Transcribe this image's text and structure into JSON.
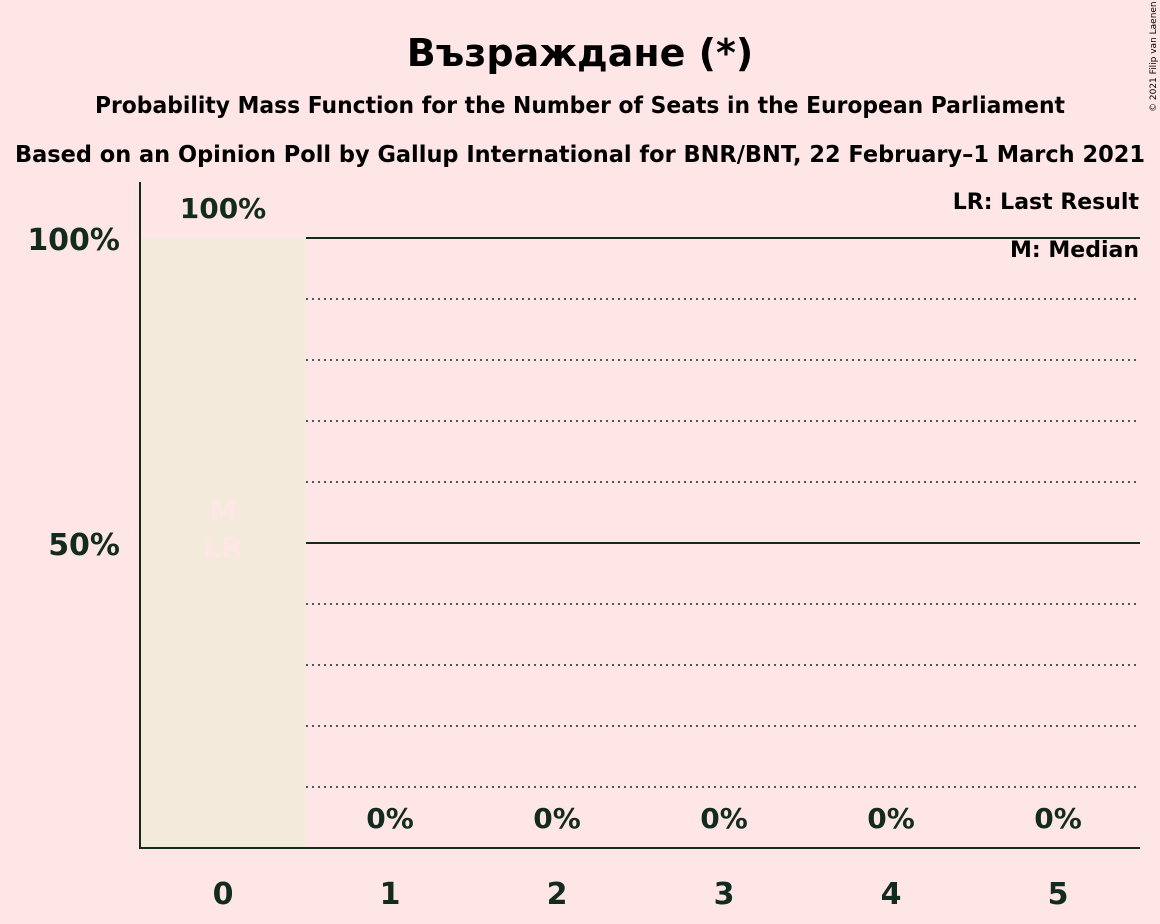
{
  "credit": "© 2021 Filip van Laenen",
  "chart_data": {
    "type": "bar",
    "title": "Възраждане (*)",
    "subtitle": "Probability Mass Function for the Number of Seats in the European Parliament",
    "subtitle2": "Based on an Opinion Poll by Gallup International for BNR/BNT, 22 February–1 March 2021",
    "categories": [
      "0",
      "1",
      "2",
      "3",
      "4",
      "5"
    ],
    "values": [
      100,
      0,
      0,
      0,
      0,
      0
    ],
    "value_labels": [
      "100%",
      "0%",
      "0%",
      "0%",
      "0%",
      "0%"
    ],
    "ylim": [
      0,
      100
    ],
    "yticks": [
      50,
      100
    ],
    "ytick_labels": [
      "50%",
      "100%"
    ],
    "grid": "dotted every 10%, solid at 50% and 100%",
    "median_label": "M",
    "last_result_label": "LR",
    "median_index": 0,
    "last_result_index": 0,
    "legend": [
      "LR: Last Result",
      "M: Median"
    ],
    "legend_position": "top-right",
    "colors": {
      "background": "#FFE6E6",
      "bar": "#F3EADC",
      "text": "#122B1E",
      "marker_text": "#FFE6E6"
    }
  }
}
